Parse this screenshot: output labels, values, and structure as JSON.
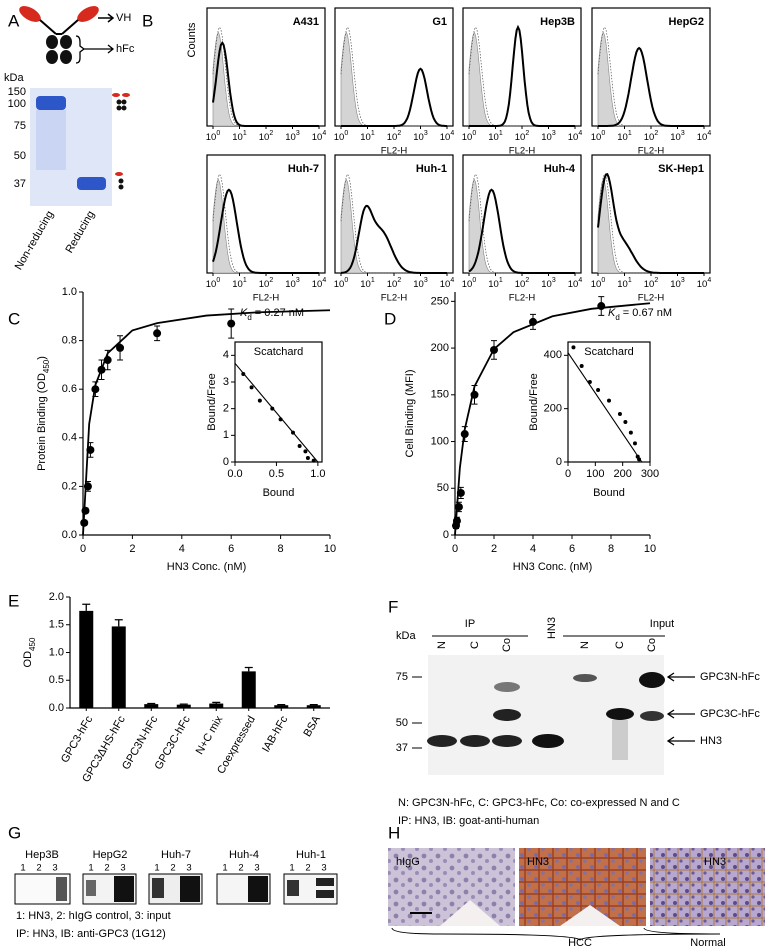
{
  "panel_labels": [
    "A",
    "B",
    "C",
    "D",
    "E",
    "F",
    "G",
    "H"
  ],
  "panel_a": {
    "vh": "VH",
    "hfc": "hFc",
    "unit": "kDa",
    "markers": [
      "150",
      "100",
      "75",
      "50",
      "37"
    ],
    "lanes": [
      "Non-reducing",
      "Reducing"
    ]
  },
  "panel_b": {
    "ylabel": "Counts",
    "xlabel": "FL2-H",
    "xtick_base": "10",
    "xtick_exps": [
      "0",
      "1",
      "2",
      "3",
      "4"
    ],
    "cells": [
      "A431",
      "G1",
      "Hep3B",
      "HepG2",
      "Huh-7",
      "Huh-1",
      "Huh-4",
      "SK-Hep1"
    ]
  },
  "chart_data": [
    {
      "type": "scatter",
      "xlabel": "HN3 Conc. (nM)",
      "ylabel": {
        "text": "Protein Binding (OD",
        "sub": "450",
        "end": ")"
      },
      "annotation": {
        "symbol": "K",
        "sub": "d",
        "text": "= 0.27 nM"
      },
      "x": [
        0.05,
        0.1,
        0.2,
        0.3,
        0.5,
        0.75,
        1,
        1.5,
        3,
        6
      ],
      "values": [
        0.05,
        0.1,
        0.2,
        0.35,
        0.6,
        0.68,
        0.72,
        0.77,
        0.83,
        0.87
      ],
      "errors": [
        0.01,
        0.01,
        0.02,
        0.03,
        0.03,
        0.04,
        0.04,
        0.05,
        0.03,
        0.06
      ],
      "fit": {
        "x": [
          0,
          0.25,
          0.5,
          1,
          2,
          3,
          5,
          7,
          10
        ],
        "y": [
          0,
          0.457,
          0.617,
          0.748,
          0.842,
          0.872,
          0.903,
          0.916,
          0.925
        ]
      },
      "xlim": [
        0,
        10
      ],
      "ylim": [
        0,
        1.0
      ],
      "xticks": [
        0,
        2,
        4,
        6,
        8,
        10
      ],
      "yticks": [
        {
          "value": 0,
          "label": "0.0"
        },
        0.2,
        0.4,
        0.6,
        0.8,
        {
          "value": 1,
          "label": "1.0"
        }
      ]
    },
    {
      "type": "scatter",
      "title": "Scatchard",
      "xlabel": "Bound",
      "ylabel": {
        "text": "Bound/Free"
      },
      "x": [
        0.1,
        0.2,
        0.3,
        0.45,
        0.55,
        0.7,
        0.78,
        0.85,
        0.88,
        0.95
      ],
      "values": [
        3.3,
        2.8,
        2.3,
        2.0,
        1.6,
        1.1,
        0.6,
        0.4,
        0.15,
        0.05
      ],
      "fit": {
        "x": [
          0,
          1
        ],
        "y": [
          3.7,
          0
        ]
      },
      "xlim": [
        0,
        1.05
      ],
      "ylim": [
        0,
        4.5
      ],
      "xticks": [
        {
          "value": 0,
          "label": "0.0"
        },
        0.5,
        {
          "value": 1,
          "label": "1.0"
        }
      ],
      "yticks": [
        0,
        1,
        2,
        3,
        4
      ]
    },
    {
      "type": "scatter",
      "xlabel": "HN3 Conc. (nM)",
      "ylabel": {
        "text": "Cell Binding (MFI)"
      },
      "annotation": {
        "symbol": "K",
        "sub": "d",
        "text": "= 0.67 nM"
      },
      "x": [
        0.05,
        0.1,
        0.2,
        0.3,
        0.5,
        1,
        2,
        4,
        7.5
      ],
      "values": [
        10,
        15,
        30,
        45,
        108,
        150,
        198,
        228,
        245
      ],
      "errors": [
        3,
        4,
        5,
        6,
        8,
        10,
        10,
        8,
        10
      ],
      "fit": {
        "x": [
          0,
          0.25,
          0.5,
          1,
          2,
          3,
          5,
          7,
          10
        ],
        "y": [
          0,
          72,
          113,
          159,
          199,
          217,
          234,
          242,
          248
        ]
      },
      "xlim": [
        0,
        10
      ],
      "ylim": [
        0,
        260
      ],
      "xticks": [
        0,
        2,
        4,
        6,
        8,
        10
      ],
      "yticks": [
        0,
        50,
        100,
        150,
        200,
        250
      ]
    },
    {
      "type": "scatter",
      "title": "Scatchard",
      "xlabel": "Bound",
      "ylabel": {
        "text": "Bound/Free"
      },
      "x": [
        20,
        50,
        80,
        110,
        150,
        190,
        210,
        230,
        245,
        255,
        260
      ],
      "values": [
        430,
        360,
        300,
        270,
        230,
        180,
        150,
        110,
        70,
        20,
        10
      ],
      "fit": {
        "x": [
          0,
          270
        ],
        "y": [
          410,
          0
        ]
      },
      "xlim": [
        0,
        300
      ],
      "ylim": [
        0,
        450
      ],
      "xticks": [
        0,
        100,
        200,
        300
      ],
      "yticks": [
        0,
        200,
        400
      ]
    },
    {
      "type": "bar",
      "ylabel": {
        "text": "OD",
        "sub": "450"
      },
      "categories": [
        "GPC3-hFc",
        "GPC3ΔHS-hFc",
        "GPC3N-hFc",
        "GPC3C-hFc",
        "N+C mix",
        "Coexpressed",
        "IAB-hFc",
        "BSA"
      ],
      "values": [
        1.75,
        1.47,
        0.07,
        0.06,
        0.08,
        0.66,
        0.05,
        0.05
      ],
      "errors": [
        0.12,
        0.12,
        0.01,
        0.01,
        0.02,
        0.07,
        0.01,
        0.01
      ],
      "color": "#000000",
      "ylim": [
        0,
        2.0
      ],
      "yticks": [
        {
          "value": 0,
          "label": "0.0"
        },
        0.5,
        {
          "value": 1,
          "label": "1.0"
        },
        1.5,
        {
          "value": 2,
          "label": "2.0"
        }
      ]
    }
  ],
  "panel_f": {
    "ip": "IP",
    "hn3": "HN3",
    "input": "Input",
    "lanes": [
      "N",
      "C",
      "Co",
      "N",
      "C",
      "Co"
    ],
    "unit": "kDa",
    "markers": [
      "75",
      "50",
      "37"
    ],
    "bands": [
      "GPC3N-hFc",
      "GPC3C-hFc",
      "HN3"
    ],
    "caption": [
      "N: GPC3N-hFc, C: GPC3-hFc, Co: co-expressed N and C",
      "IP: HN3, IB: goat-anti-human"
    ]
  },
  "panel_g": {
    "cells": [
      "Hep3B",
      "HepG2",
      "Huh-7",
      "Huh-4",
      "Huh-1"
    ],
    "lane_numbers": [
      "1",
      "2",
      "3"
    ],
    "caption": [
      "1: HN3, 2: hIgG control, 3: input",
      "IP: HN3, IB: anti-GPC3 (1G12)"
    ]
  },
  "panel_h": {
    "images": [
      "hIgG",
      "HN3",
      "HN3"
    ],
    "hcc": "HCC",
    "normal": "Normal"
  }
}
